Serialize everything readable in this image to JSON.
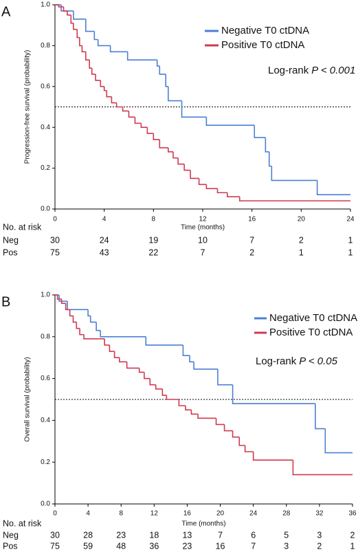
{
  "chart_data": [
    {
      "type": "step",
      "panel": "A",
      "ylabel": "Progression-free survival (probability)",
      "xlabel": "Time (months)",
      "xlim": [
        0,
        24
      ],
      "xticks": [
        0,
        4,
        8,
        12,
        16,
        20,
        24
      ],
      "ylim": [
        0,
        1
      ],
      "yticks": [
        {
          "value": 0,
          "label": "0.0"
        },
        0.2,
        0.4,
        0.6,
        0.8,
        {
          "value": 1,
          "label": "1.0"
        }
      ],
      "reference_line": 0.5,
      "annotation": {
        "prefix": "Log-rank",
        "stat": "P < 0.001"
      },
      "series": [
        {
          "name": "Negative T0 ctDNA",
          "color": "#4a7fd4",
          "x": [
            0,
            0.5,
            1.5,
            2.5,
            3.2,
            3.5,
            4.5,
            5.9,
            8.3,
            8.5,
            9.0,
            9.2,
            10.3,
            12.3,
            16.2,
            17.1,
            17.4,
            17.6,
            21.3,
            24
          ],
          "values": [
            1.0,
            0.97,
            0.93,
            0.87,
            0.83,
            0.8,
            0.77,
            0.73,
            0.7,
            0.66,
            0.6,
            0.53,
            0.45,
            0.41,
            0.35,
            0.28,
            0.21,
            0.14,
            0.07,
            0.07
          ]
        },
        {
          "name": "Positive T0 ctDNA",
          "color": "#d0384f",
          "x": [
            0,
            0.3,
            0.7,
            1.0,
            1.3,
            1.5,
            1.8,
            2.0,
            2.2,
            2.5,
            2.8,
            3.0,
            3.3,
            3.7,
            4.0,
            4.2,
            4.6,
            5.0,
            5.5,
            6.0,
            6.5,
            7.0,
            7.5,
            8.0,
            8.5,
            9.2,
            9.6,
            10.0,
            10.5,
            11.0,
            11.7,
            12.3,
            13.2,
            14.0,
            15.0,
            24
          ],
          "values": [
            1.0,
            0.99,
            0.97,
            0.95,
            0.91,
            0.88,
            0.84,
            0.8,
            0.77,
            0.73,
            0.69,
            0.66,
            0.63,
            0.6,
            0.58,
            0.55,
            0.52,
            0.5,
            0.48,
            0.45,
            0.42,
            0.4,
            0.37,
            0.34,
            0.3,
            0.28,
            0.25,
            0.22,
            0.19,
            0.15,
            0.12,
            0.1,
            0.08,
            0.06,
            0.04,
            0.04
          ]
        }
      ],
      "risk_table": {
        "title": "No. at risk",
        "rows": [
          {
            "name": "Neg",
            "values": [
              30,
              24,
              19,
              10,
              7,
              2,
              1
            ]
          },
          {
            "name": "Pos",
            "values": [
              75,
              43,
              22,
              7,
              2,
              1,
              1
            ]
          }
        ]
      }
    },
    {
      "type": "step",
      "panel": "B",
      "ylabel": "Overall survival (probability)",
      "xlabel": "Time (months)",
      "xlim": [
        0,
        36
      ],
      "xticks": [
        0,
        4,
        8,
        12,
        16,
        20,
        24,
        28,
        32,
        36
      ],
      "ylim": [
        0,
        1
      ],
      "yticks": [
        {
          "value": 0,
          "label": "0.0"
        },
        0.2,
        0.4,
        0.6,
        0.8,
        {
          "value": 1,
          "label": "1.0"
        }
      ],
      "reference_line": 0.5,
      "annotation": {
        "prefix": "Log-rank",
        "stat": "P < 0.05"
      },
      "series": [
        {
          "name": "Negative T0 ctDNA",
          "color": "#4a7fd4",
          "x": [
            0,
            0.5,
            1.5,
            4.0,
            4.3,
            5.0,
            5.5,
            11.0,
            15.5,
            16.3,
            16.8,
            19.7,
            21.5,
            31.5,
            32.7,
            36
          ],
          "values": [
            1.0,
            0.97,
            0.93,
            0.9,
            0.87,
            0.83,
            0.8,
            0.76,
            0.71,
            0.68,
            0.645,
            0.57,
            0.48,
            0.36,
            0.245,
            0.245
          ]
        },
        {
          "name": "Positive T0 ctDNA",
          "color": "#d0384f",
          "x": [
            0,
            0.3,
            0.8,
            1.3,
            1.8,
            2.2,
            2.6,
            3.0,
            3.5,
            6.0,
            6.6,
            7.2,
            7.8,
            8.7,
            10.2,
            10.8,
            11.5,
            12.2,
            13.0,
            13.5,
            15.0,
            15.8,
            16.5,
            17.3,
            19.5,
            20.5,
            21.5,
            22.3,
            23.0,
            24.0,
            28.8,
            36
          ],
          "values": [
            1.0,
            0.98,
            0.96,
            0.93,
            0.9,
            0.87,
            0.84,
            0.81,
            0.79,
            0.76,
            0.73,
            0.7,
            0.68,
            0.65,
            0.63,
            0.6,
            0.57,
            0.55,
            0.52,
            0.5,
            0.47,
            0.45,
            0.43,
            0.41,
            0.38,
            0.35,
            0.32,
            0.28,
            0.25,
            0.21,
            0.14,
            0.14
          ]
        }
      ],
      "risk_table": {
        "title": "No. at risk",
        "rows": [
          {
            "name": "Neg",
            "values": [
              30,
              28,
              23,
              18,
              13,
              7,
              6,
              5,
              3,
              2
            ]
          },
          {
            "name": "Pos",
            "values": [
              75,
              59,
              48,
              36,
              23,
              16,
              7,
              3,
              2,
              1
            ]
          }
        ]
      }
    }
  ]
}
